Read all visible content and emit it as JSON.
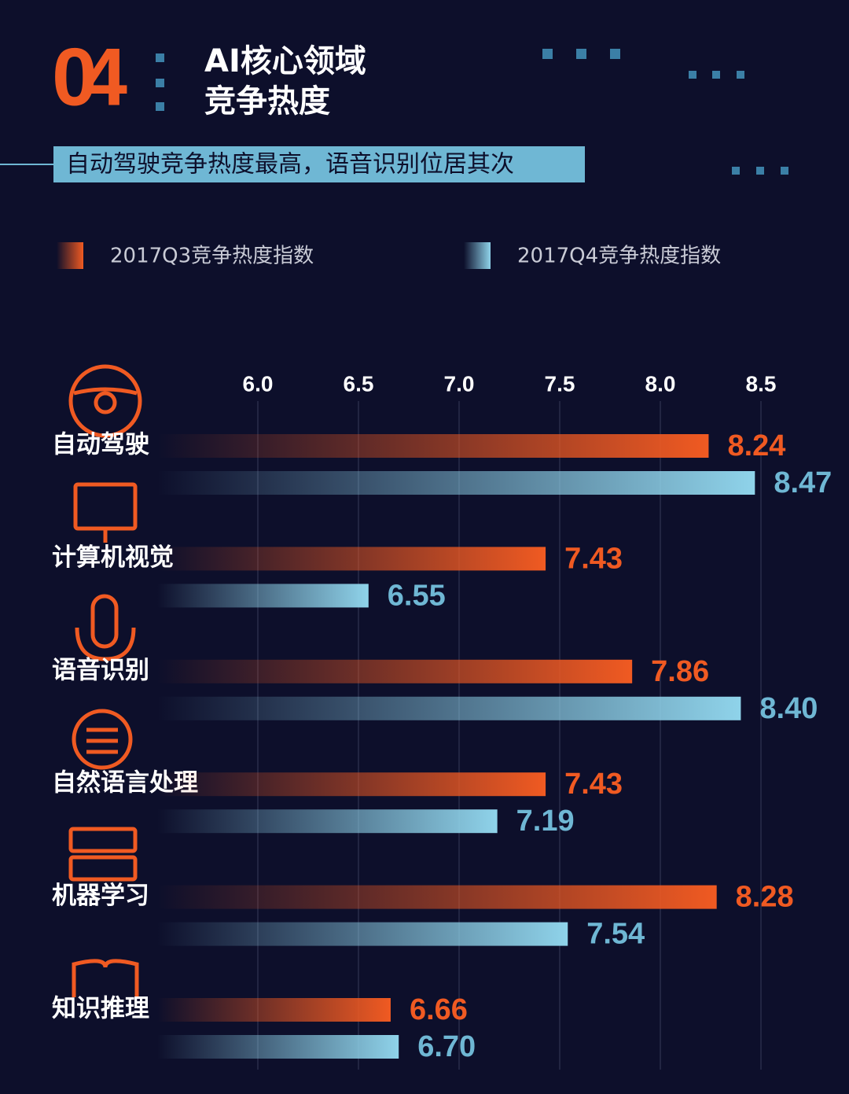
{
  "chart_data": {
    "type": "bar",
    "orientation": "horizontal",
    "number": "04",
    "title": [
      "AI核心领域",
      "竞争热度"
    ],
    "subtitle": "自动驾驶竞争热度最高，语音识别位居其次",
    "categories": [
      "自动驾驶",
      "计算机视觉",
      "语音识别",
      "自然语言处理",
      "机器学习",
      "知识推理"
    ],
    "series": [
      {
        "name": "2017Q3竞争热度指数",
        "color": "#f05a22",
        "values": [
          8.24,
          7.43,
          7.86,
          7.43,
          8.28,
          6.66
        ],
        "value_labels": [
          "8.24",
          "7.43",
          "7.86",
          "7.43",
          "8.28",
          "6.66"
        ]
      },
      {
        "name": "2017Q4竞争热度指数",
        "color": "#8fd3ea",
        "values": [
          8.47,
          6.55,
          8.4,
          7.19,
          7.54,
          6.7
        ],
        "value_labels": [
          "8.47",
          "6.55",
          "8.40",
          "7.19",
          "7.54",
          "6.70"
        ]
      }
    ],
    "xlim": [
      5.5,
      8.5
    ],
    "xticks": [
      {
        "value": 6,
        "label": "6.0"
      },
      6.5,
      {
        "value": 7,
        "label": "7.0"
      },
      7.5,
      {
        "value": 8,
        "label": "8.0"
      },
      8.5
    ],
    "grid": true
  }
}
